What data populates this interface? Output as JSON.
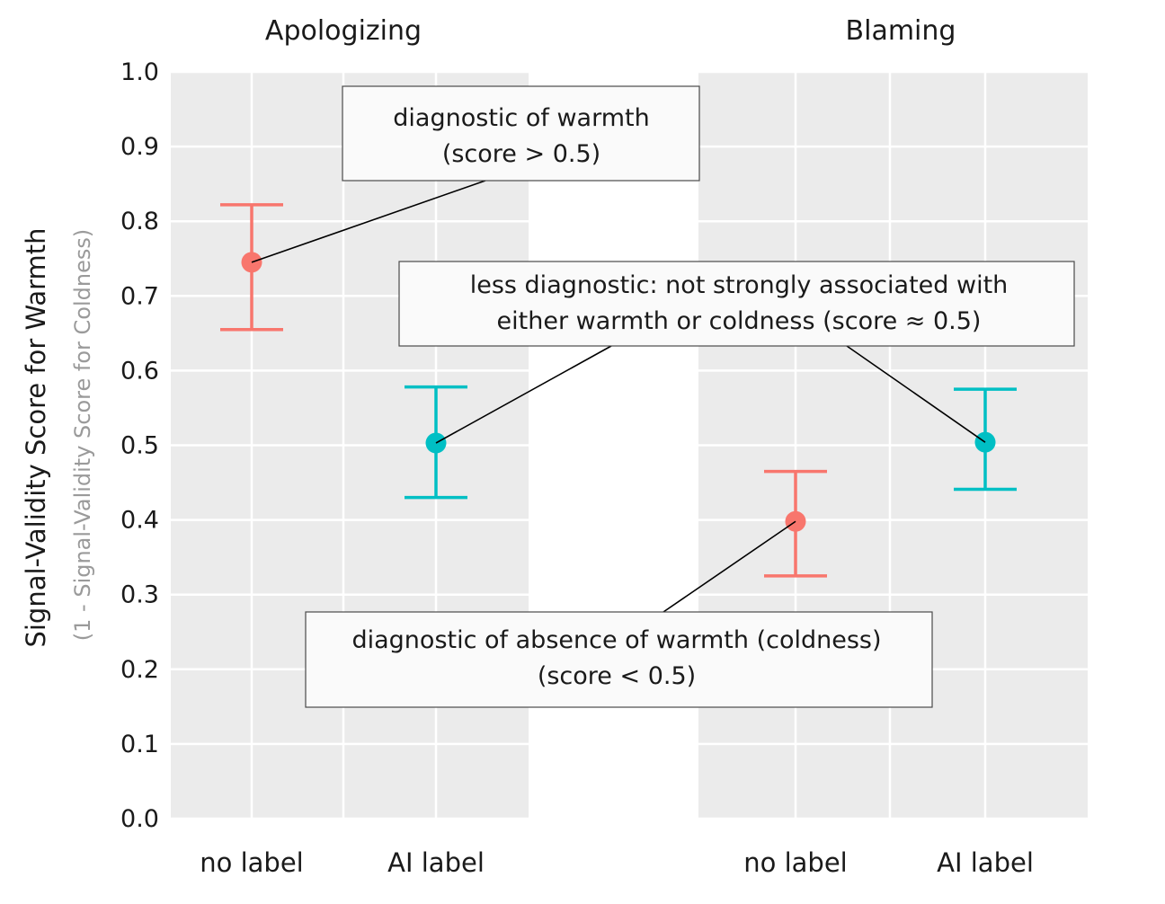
{
  "chart_data": {
    "type": "scatter",
    "title": "",
    "ylabel": "Signal-Validity Score for Warmth",
    "ylabel_secondary": "(1 - Signal-Validity Score for Coldness)",
    "ylim": [
      0,
      1
    ],
    "yticks": [
      "0.0",
      "0.1",
      "0.2",
      "0.3",
      "0.4",
      "0.5",
      "0.6",
      "0.7",
      "0.8",
      "0.9",
      "1.0"
    ],
    "categories": [
      "no label",
      "AI label"
    ],
    "colors": {
      "no label": "#F8766D",
      "AI label": "#00BFC4"
    },
    "facets": [
      {
        "title": "Apologizing",
        "points": [
          {
            "category": "no label",
            "mean": 0.745,
            "lower": 0.655,
            "upper": 0.822
          },
          {
            "category": "AI label",
            "mean": 0.503,
            "lower": 0.43,
            "upper": 0.578
          }
        ]
      },
      {
        "title": "Blaming",
        "points": [
          {
            "category": "no label",
            "mean": 0.398,
            "lower": 0.325,
            "upper": 0.465
          },
          {
            "category": "AI label",
            "mean": 0.504,
            "lower": 0.441,
            "upper": 0.575
          }
        ]
      }
    ],
    "annotations": [
      {
        "line1": "diagnostic of  warmth",
        "line2": "(score > 0.5)"
      },
      {
        "line1": "less diagnostic: not strongly associated with",
        "line2": "either warmth or coldness (score ≈ 0.5)"
      },
      {
        "line1": "diagnostic of absence of warmth (coldness)",
        "line2": "(score < 0.5)"
      }
    ]
  }
}
